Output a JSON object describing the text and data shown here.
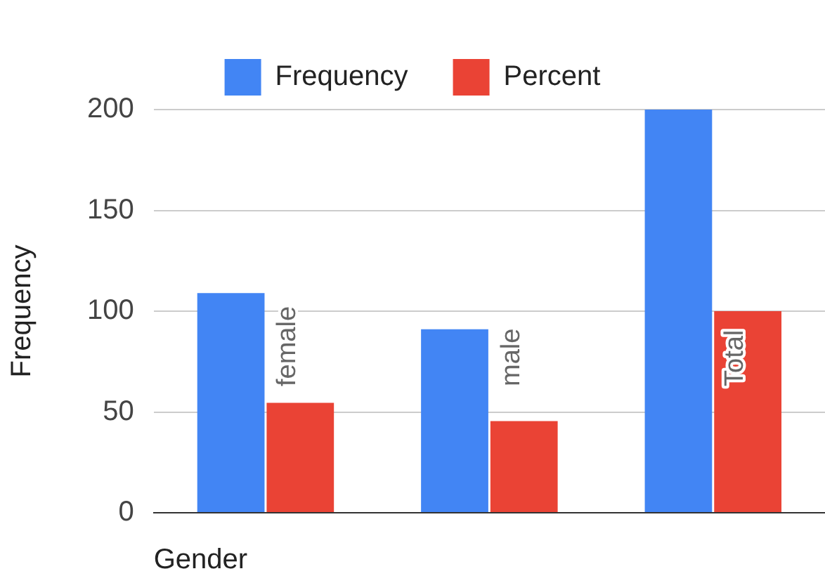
{
  "chart_data": {
    "type": "bar",
    "xlabel": "Gender",
    "ylabel": "Frequency",
    "categories": [
      "female",
      "male",
      "Total"
    ],
    "series": [
      {
        "name": "Frequency",
        "color": "#4285f4",
        "values": [
          109,
          91,
          200
        ]
      },
      {
        "name": "Percent",
        "color": "#ea4335",
        "values": [
          54.5,
          45.5,
          100
        ]
      }
    ],
    "ylim": [
      0,
      200
    ],
    "yticks": [
      0,
      50,
      100,
      150,
      200
    ],
    "grid": "y",
    "legend": "top"
  }
}
